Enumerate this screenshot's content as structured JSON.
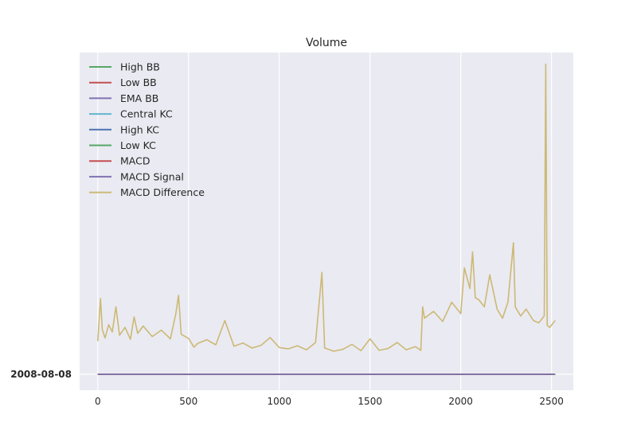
{
  "chart_data": {
    "type": "line",
    "title": "Volume",
    "xlabel": "",
    "ylabel": "",
    "xlim": [
      -100,
      2620
    ],
    "x_ticks": [
      "0",
      "500",
      "1000",
      "1500",
      "2000",
      "2500"
    ],
    "y_tick_label": "2008-08-08",
    "grid": true,
    "legend_placement": "top-left",
    "series": [
      {
        "name": "High BB",
        "color": "#55a868"
      },
      {
        "name": "Low BB",
        "color": "#c44e52"
      },
      {
        "name": "EMA BB",
        "color": "#8172b2"
      },
      {
        "name": "Central KC",
        "color": "#64b5cd"
      },
      {
        "name": "High KC",
        "color": "#4c72b0"
      },
      {
        "name": "Low KC",
        "color": "#55a868"
      },
      {
        "name": "MACD",
        "color": "#c44e52"
      },
      {
        "name": "MACD Signal",
        "color": "#8172b2"
      },
      {
        "name": "MACD Difference",
        "color": "#ccb974"
      }
    ],
    "flat_line": {
      "x": [
        0,
        2520
      ],
      "y": 0
    },
    "volume_series": {
      "color": "#ccb974",
      "x": [
        0,
        15,
        25,
        40,
        60,
        80,
        100,
        120,
        150,
        180,
        200,
        220,
        250,
        300,
        350,
        400,
        430,
        445,
        460,
        500,
        530,
        550,
        600,
        650,
        700,
        750,
        800,
        850,
        900,
        950,
        1000,
        1050,
        1100,
        1150,
        1200,
        1235,
        1250,
        1300,
        1350,
        1400,
        1450,
        1500,
        1550,
        1600,
        1650,
        1700,
        1750,
        1780,
        1790,
        1800,
        1850,
        1900,
        1950,
        2000,
        2020,
        2050,
        2065,
        2080,
        2100,
        2130,
        2160,
        2200,
        2230,
        2260,
        2290,
        2300,
        2330,
        2360,
        2400,
        2430,
        2460,
        2468,
        2476,
        2490,
        2520
      ],
      "y": [
        5.5,
        14.8,
        8.0,
        6.2,
        9.1,
        7.5,
        13.0,
        6.8,
        8.5,
        5.9,
        10.8,
        7.2,
        8.8,
        6.5,
        7.9,
        6.0,
        11.5,
        15.5,
        7.0,
        6.1,
        4.2,
        5.0,
        5.8,
        4.7,
        10.0,
        4.4,
        5.1,
        4.0,
        4.6,
        6.3,
        4.1,
        3.8,
        4.5,
        3.6,
        5.2,
        20.5,
        4.0,
        3.3,
        3.7,
        4.8,
        3.4,
        6.0,
        3.5,
        3.9,
        5.2,
        3.6,
        4.3,
        3.5,
        13.0,
        10.5,
        12.0,
        9.8,
        14.0,
        11.5,
        21.5,
        17.0,
        25.0,
        15.0,
        14.5,
        13.0,
        20.0,
        12.5,
        10.5,
        14.0,
        27.0,
        13.0,
        11.0,
        12.5,
        10.0,
        9.5,
        11.0,
        66.0,
        9.0,
        8.5,
        10.0
      ]
    }
  }
}
